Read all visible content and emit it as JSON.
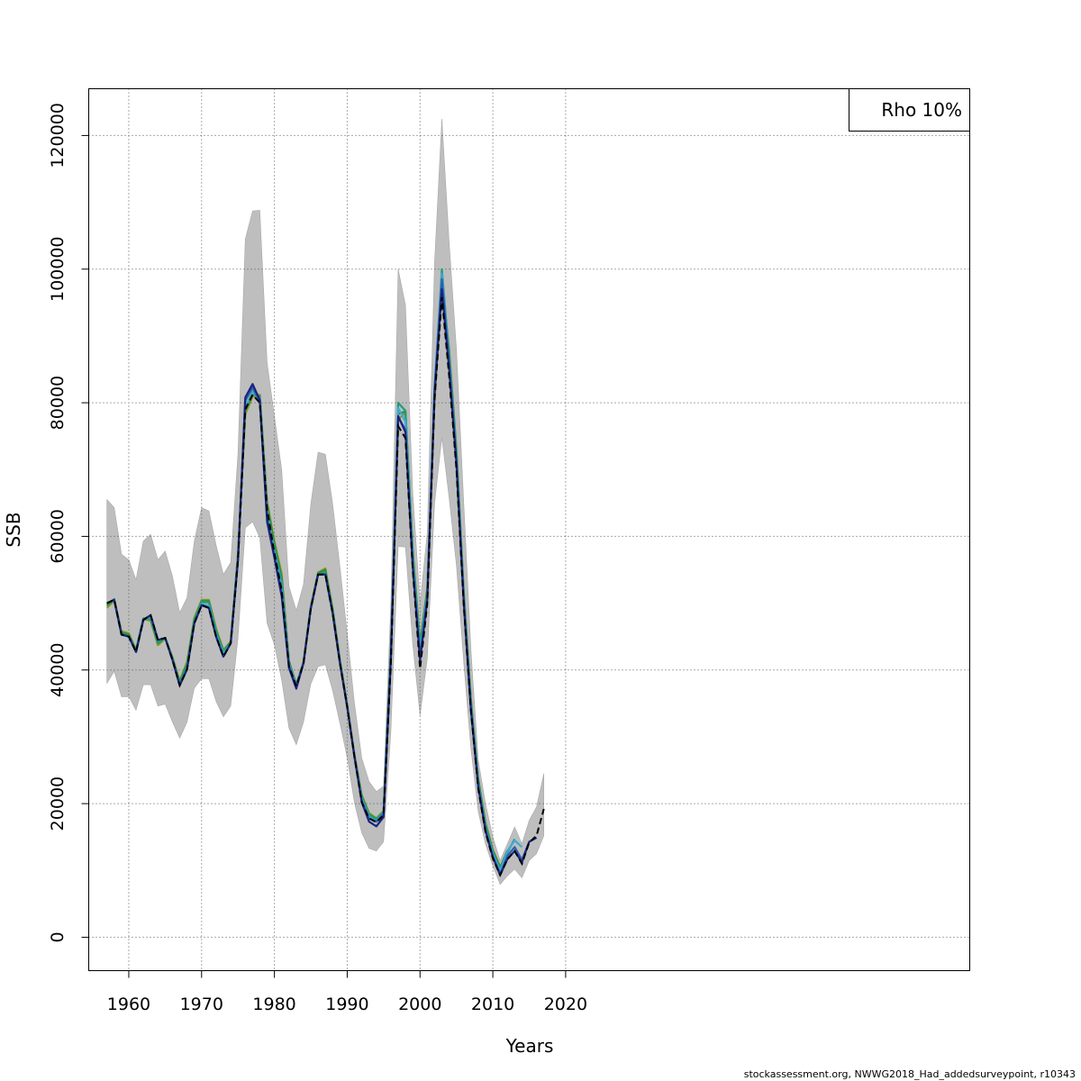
{
  "chart_data": {
    "type": "line",
    "xlabel": "Years",
    "ylabel": "SSB",
    "xlim": [
      1954.5,
      2075.5
    ],
    "ylim": [
      -5000,
      127000
    ],
    "xticks": [
      1960,
      1970,
      1980,
      1990,
      2000,
      2010,
      2020
    ],
    "yticks": [
      0,
      20000,
      40000,
      60000,
      80000,
      100000,
      120000
    ],
    "grid": true,
    "legend": {
      "position": "top-right",
      "entries": [
        "Rho 10%"
      ]
    },
    "footnote": "stockassessment.org, NWWG2018_Had_addedsurveypoint, r10343",
    "colors": {
      "band": "#bebebe",
      "base": "#000000",
      "peels": [
        "#1a237e",
        "#2a5fae",
        "#3fa8d8",
        "#1e9e7a",
        "#2e8b3a",
        "#8a9a1e"
      ]
    },
    "confidence_band": {
      "x": [
        1957,
        1958,
        1959,
        1960,
        1961,
        1962,
        1963,
        1964,
        1965,
        1966,
        1967,
        1968,
        1969,
        1970,
        1971,
        1972,
        1973,
        1974,
        1975,
        1976,
        1977,
        1978,
        1979,
        1980,
        1981,
        1982,
        1983,
        1984,
        1985,
        1986,
        1987,
        1988,
        1989,
        1990,
        1991,
        1992,
        1993,
        1994,
        1995,
        1996,
        1997,
        1998,
        1999,
        2000,
        2001,
        2002,
        2003,
        2004,
        2005,
        2006,
        2007,
        2008,
        2009,
        2010,
        2011,
        2012,
        2013,
        2014,
        2015,
        2016,
        2017
      ],
      "upper": [
        65500,
        64300,
        57300,
        56500,
        53500,
        59300,
        60300,
        56500,
        57800,
        54000,
        48600,
        50800,
        59300,
        64300,
        63800,
        58700,
        54300,
        56100,
        72500,
        104500,
        108700,
        108800,
        86000,
        78000,
        70000,
        52500,
        48900,
        52800,
        64800,
        72600,
        72300,
        64800,
        55400,
        45500,
        35000,
        26800,
        23300,
        21800,
        22600,
        50000,
        100000,
        94600,
        66500,
        50000,
        60500,
        101000,
        122500,
        104000,
        88000,
        65000,
        43000,
        26500,
        20000,
        15000,
        11500,
        14000,
        16500,
        14000,
        17500,
        19500,
        24500
      ],
      "lower": [
        38000,
        39800,
        36000,
        36000,
        34000,
        37800,
        37800,
        34600,
        34900,
        32200,
        29800,
        32200,
        37300,
        38700,
        38700,
        35300,
        33000,
        34600,
        44800,
        61300,
        62200,
        59800,
        47000,
        43800,
        38500,
        31300,
        28800,
        32200,
        37900,
        40500,
        40800,
        36900,
        32000,
        26900,
        20100,
        15600,
        13300,
        12900,
        14300,
        30800,
        58500,
        58400,
        43800,
        33200,
        41700,
        64900,
        74800,
        65700,
        55600,
        41100,
        28200,
        18800,
        13900,
        10700,
        7900,
        9200,
        10200,
        8900,
        11500,
        12500,
        15200
      ]
    },
    "series": [
      {
        "x": [
          1957,
          1958,
          1959,
          1960,
          1961,
          1962,
          1963,
          1964,
          1965,
          1966,
          1967,
          1968,
          1969,
          1970,
          1971,
          1972,
          1973,
          1974,
          1975,
          1976,
          1977,
          1978,
          1979,
          1980,
          1981,
          1982,
          1983,
          1984,
          1985,
          1986,
          1987,
          1988,
          1989,
          1990,
          1991,
          1992,
          1993,
          1994,
          1995,
          1996,
          1997,
          1998,
          1999,
          2000,
          2001,
          2002,
          2003,
          2004,
          2005,
          2006,
          2007,
          2008,
          2009,
          2010,
          2011,
          2012,
          2013,
          2014,
          2015,
          2016,
          2017
        ],
        "values": [
          50000,
          50500,
          45300,
          45000,
          42700,
          47500,
          48200,
          44500,
          44800,
          41500,
          37700,
          40100,
          47000,
          49700,
          49300,
          45000,
          42000,
          44000,
          56500,
          79000,
          81200,
          80000,
          64000,
          57500,
          52000,
          40500,
          37600,
          41000,
          49200,
          54300,
          54300,
          48500,
          41000,
          34500,
          27000,
          20200,
          17800,
          17200,
          18300,
          41000,
          76500,
          74700,
          55000,
          40200,
          49900,
          80500,
          95800,
          84000,
          70000,
          49700,
          33800,
          22200,
          15700,
          11800,
          9300,
          11700,
          12900,
          11000,
          14200,
          15200,
          19200
        ],
        "dashed": true
      },
      {
        "x": [
          1957,
          1958,
          1959,
          1960,
          1961,
          1962,
          1963,
          1964,
          1965,
          1966,
          1967,
          1968,
          1969,
          1970,
          1971,
          1972,
          1973,
          1974,
          1975,
          1976,
          1977,
          1978,
          1979,
          1980,
          1981,
          1982,
          1983,
          1984,
          1985,
          1986,
          1987,
          1988,
          1989,
          1990,
          1991,
          1992,
          1993,
          1994,
          1995,
          1996,
          1997,
          1998,
          1999,
          2000,
          2001,
          2002,
          2003,
          2004,
          2005,
          2006,
          2007,
          2008,
          2009,
          2010,
          2011,
          2012,
          2013,
          2014,
          2015,
          2016
        ],
        "values": [
          50000,
          50500,
          45300,
          45000,
          42700,
          47500,
          48200,
          44500,
          44800,
          41500,
          37700,
          40100,
          47000,
          49700,
          49300,
          45000,
          42000,
          44000,
          56500,
          80800,
          82800,
          80400,
          62200,
          56800,
          51000,
          40300,
          37200,
          41000,
          49200,
          54300,
          54300,
          48500,
          41000,
          34500,
          27000,
          20200,
          17300,
          16600,
          18000,
          41500,
          78000,
          75600,
          55400,
          41400,
          50500,
          81300,
          97000,
          85000,
          70800,
          50000,
          34000,
          22500,
          15900,
          12000,
          9300,
          11700,
          12900,
          11200,
          14300,
          14900
        ]
      },
      {
        "x": [
          1957,
          1958,
          1959,
          1960,
          1961,
          1962,
          1963,
          1964,
          1965,
          1966,
          1967,
          1968,
          1969,
          1970,
          1971,
          1972,
          1973,
          1974,
          1975,
          1976,
          1977,
          1978,
          1979,
          1980,
          1981,
          1982,
          1983,
          1984,
          1985,
          1986,
          1987,
          1988,
          1989,
          1990,
          1991,
          1992,
          1993,
          1994,
          1995,
          1996,
          1997,
          1998,
          1999,
          2000,
          2001,
          2002,
          2003,
          2004,
          2005,
          2006,
          2007,
          2008,
          2009,
          2010,
          2011,
          2012,
          2013,
          2014,
          2015
        ],
        "values": [
          50000,
          50500,
          45300,
          45000,
          42700,
          47500,
          48200,
          44500,
          44800,
          41500,
          37700,
          40100,
          47000,
          49700,
          49300,
          45000,
          42000,
          44000,
          56500,
          80300,
          82300,
          80200,
          62800,
          57100,
          51500,
          40700,
          37500,
          41000,
          49200,
          54300,
          54300,
          48500,
          41000,
          34500,
          27000,
          20400,
          17800,
          17300,
          18500,
          42000,
          77800,
          76000,
          55800,
          42000,
          50800,
          82000,
          98500,
          86000,
          71500,
          50500,
          34300,
          22700,
          16100,
          12100,
          9500,
          12200,
          13500,
          11600,
          14300
        ]
      },
      {
        "x": [
          1957,
          1958,
          1959,
          1960,
          1961,
          1962,
          1963,
          1964,
          1965,
          1966,
          1967,
          1968,
          1969,
          1970,
          1971,
          1972,
          1973,
          1974,
          1975,
          1976,
          1977,
          1978,
          1979,
          1980,
          1981,
          1982,
          1983,
          1984,
          1985,
          1986,
          1987,
          1988,
          1989,
          1990,
          1991,
          1992,
          1993,
          1994,
          1995,
          1996,
          1997,
          1998,
          1999,
          2000,
          2001,
          2002,
          2003,
          2004,
          2005,
          2006,
          2007,
          2008,
          2009,
          2010,
          2011,
          2012,
          2013,
          2014
        ],
        "values": [
          50000,
          50500,
          45300,
          45000,
          42700,
          47500,
          48000,
          44500,
          44800,
          41500,
          37700,
          40100,
          47000,
          49900,
          49600,
          45200,
          42400,
          44000,
          56800,
          79300,
          81600,
          80600,
          63500,
          57700,
          52500,
          41000,
          37700,
          41000,
          49200,
          54300,
          54300,
          48500,
          41000,
          34500,
          27000,
          20700,
          18000,
          17400,
          18600,
          42300,
          79200,
          77200,
          56600,
          42600,
          51300,
          82500,
          99300,
          86500,
          72000,
          51000,
          34700,
          23000,
          16300,
          12400,
          10000,
          12900,
          14500,
          13500
        ]
      },
      {
        "x": [
          1957,
          1958,
          1959,
          1960,
          1961,
          1962,
          1963,
          1964,
          1965,
          1966,
          1967,
          1968,
          1969,
          1970,
          1971,
          1972,
          1973,
          1974,
          1975,
          1976,
          1977,
          1978,
          1979,
          1980,
          1981,
          1982,
          1983,
          1984,
          1985,
          1986,
          1987,
          1988,
          1989,
          1990,
          1991,
          1992,
          1993,
          1994,
          1995,
          1996,
          1997,
          1998,
          1999,
          2000,
          2001,
          2002,
          2003,
          2004,
          2005,
          2006,
          2007,
          2008,
          2009,
          2010,
          2011,
          2012,
          2013
        ],
        "values": [
          49800,
          50600,
          45400,
          45100,
          42900,
          47600,
          47700,
          44100,
          44800,
          41700,
          38000,
          40600,
          47400,
          50200,
          50100,
          45700,
          42700,
          44100,
          57000,
          79300,
          81700,
          80800,
          64000,
          58200,
          53200,
          41100,
          37700,
          41100,
          49300,
          54400,
          54600,
          48800,
          41200,
          34600,
          27100,
          20900,
          18300,
          17600,
          18800,
          42700,
          80000,
          78800,
          57300,
          43300,
          51600,
          82000,
          100000,
          87000,
          72300,
          51200,
          35000,
          23400,
          16600,
          12700,
          10100,
          12700,
          14700
        ]
      },
      {
        "x": [
          1957,
          1958,
          1959,
          1960,
          1961,
          1962,
          1963,
          1964,
          1965,
          1966,
          1967,
          1968,
          1969,
          1970,
          1971,
          1972,
          1973,
          1974,
          1975,
          1976,
          1977,
          1978,
          1979,
          1980,
          1981,
          1982,
          1983,
          1984,
          1985,
          1986,
          1987,
          1988,
          1989,
          1990,
          1991,
          1992,
          1993,
          1994,
          1995,
          1996,
          1997,
          1998,
          1999,
          2000,
          2001,
          2002,
          2003,
          2004,
          2005,
          2006,
          2007,
          2008,
          2009,
          2010,
          2011,
          2012
        ],
        "values": [
          49600,
          50600,
          45600,
          45300,
          43000,
          47700,
          47600,
          44000,
          44800,
          41800,
          38200,
          40900,
          47600,
          50300,
          50300,
          45900,
          42800,
          44200,
          57300,
          78800,
          81200,
          81000,
          64800,
          58800,
          53800,
          41300,
          37800,
          41200,
          49400,
          54500,
          55000,
          49000,
          41400,
          34700,
          27200,
          21100,
          18400,
          17700,
          18800,
          43000,
          78300,
          78700,
          57600,
          43700,
          52000,
          81000,
          98700,
          87500,
          72700,
          51500,
          35300,
          23600,
          16900,
          12900,
          10400,
          13000
        ]
      },
      {
        "x": [
          1957,
          1958,
          1959,
          1960,
          1961,
          1962,
          1963,
          1964,
          1965,
          1966,
          1967,
          1968,
          1969,
          1970,
          1971,
          1972,
          1973,
          1974,
          1975,
          1976,
          1977,
          1978,
          1979,
          1980,
          1981,
          1982,
          1983,
          1984,
          1985,
          1986,
          1987,
          1988,
          1989,
          1990,
          1991,
          1992,
          1993,
          1994,
          1995,
          1996,
          1997,
          1998,
          1999,
          2000,
          2001,
          2002,
          2003,
          2004,
          2005,
          2006,
          2007,
          2008,
          2009,
          2010,
          2011
        ],
        "values": [
          49300,
          50400,
          45800,
          45500,
          43000,
          47600,
          47400,
          43700,
          44700,
          41900,
          38400,
          41200,
          47800,
          50500,
          50500,
          46200,
          43000,
          44300,
          57500,
          78300,
          80900,
          81200,
          65200,
          59300,
          54400,
          41400,
          37800,
          41200,
          49500,
          54600,
          55200,
          49200,
          41500,
          34800,
          27300,
          21300,
          18600,
          17800,
          18900,
          43300,
          77500,
          78500,
          57900,
          44000,
          52300,
          80300,
          97800,
          88000,
          73000,
          51800,
          35600,
          23800,
          17100,
          13100,
          10600
        ]
      }
    ]
  }
}
